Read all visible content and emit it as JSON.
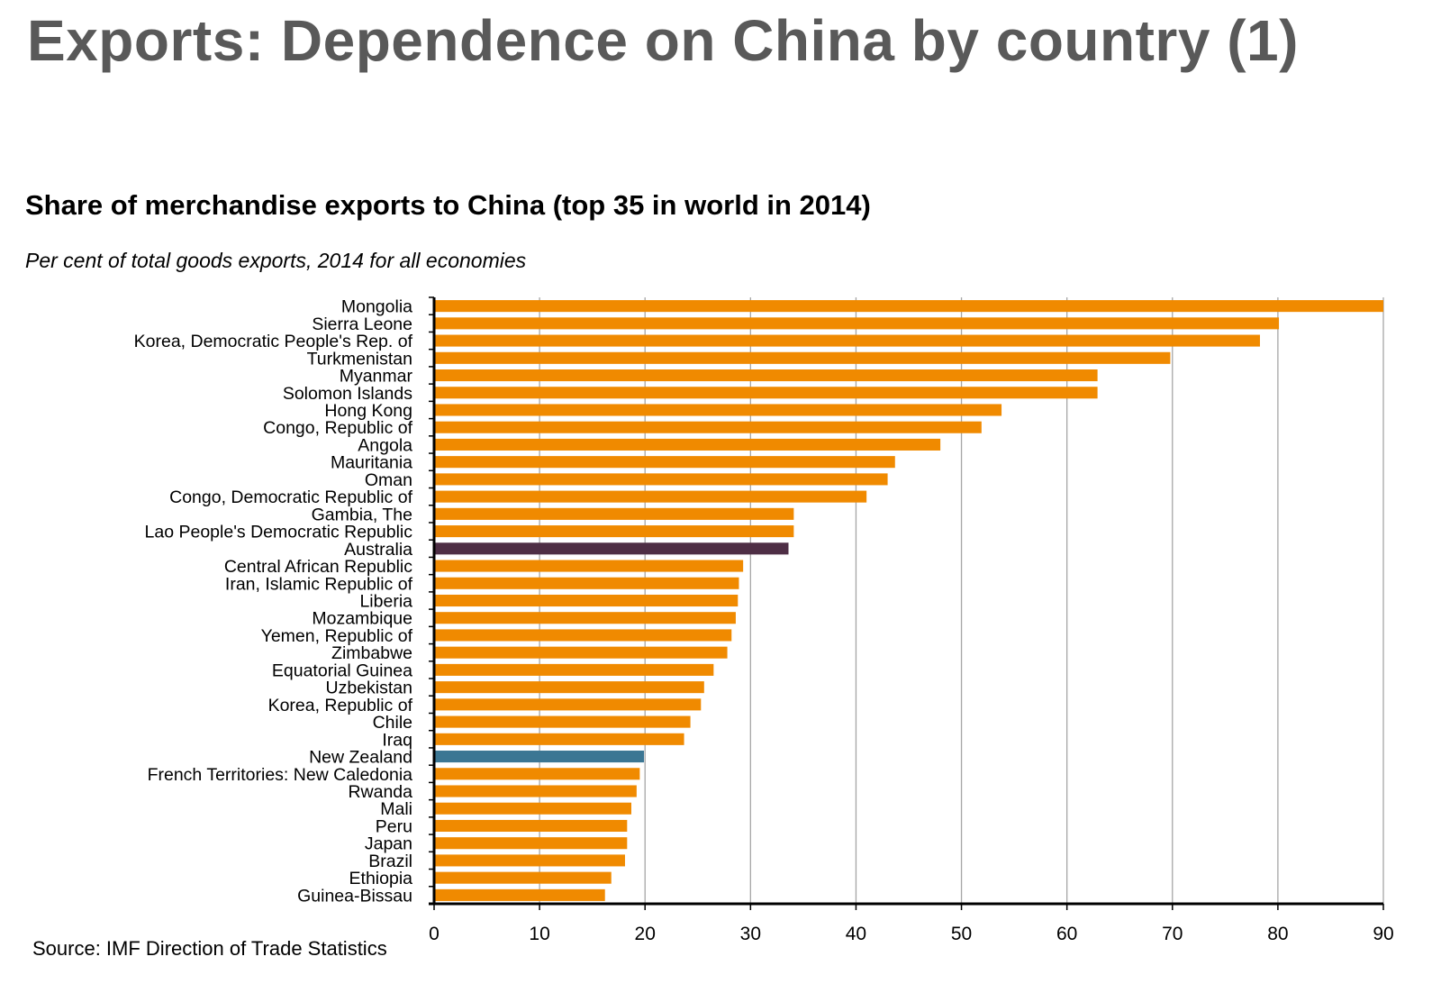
{
  "page": {
    "title": "Exports: Dependence on China by country (1)",
    "source": "Source: IMF Direction of Trade Statistics"
  },
  "colors": {
    "default_bar": "#F08A00",
    "australia": "#4E2E45",
    "new_zealand": "#3B7693",
    "gridline": "#A6A6A6",
    "axis": "#000000"
  },
  "chart_data": {
    "type": "bar",
    "orientation": "horizontal",
    "title": "Share of merchandise exports to China (top 35 in world in 2014)",
    "subtitle": "Per cent of total goods exports, 2014 for all economies",
    "xlabel": "",
    "ylabel": "",
    "xlim": [
      0,
      90
    ],
    "xticks": [
      0,
      10,
      20,
      30,
      40,
      50,
      60,
      70,
      80,
      90
    ],
    "grid": true,
    "highlight": {
      "Australia": "australia",
      "New Zealand": "new_zealand"
    },
    "categories": [
      "Mongolia",
      "Sierra Leone",
      "Korea, Democratic People's Rep. of",
      "Turkmenistan",
      "Myanmar",
      "Solomon Islands",
      "Hong Kong",
      "Congo, Republic of",
      "Angola",
      "Mauritania",
      "Oman",
      "Congo, Democratic Republic of",
      "Gambia, The",
      "Lao People's Democratic Republic",
      "Australia",
      "Central African Republic",
      "Iran, Islamic Republic of",
      "Liberia",
      "Mozambique",
      "Yemen, Republic of",
      "Zimbabwe",
      "Equatorial Guinea",
      "Uzbekistan",
      "Korea, Republic of",
      "Chile",
      "Iraq",
      "New Zealand",
      "French Territories: New Caledonia",
      "Rwanda",
      "Mali",
      "Peru",
      "Japan",
      "Brazil",
      "Ethiopia",
      "Guinea-Bissau"
    ],
    "values": [
      90.0,
      80.1,
      78.3,
      69.8,
      62.9,
      62.9,
      53.8,
      51.9,
      48.0,
      43.7,
      43.0,
      41.0,
      34.1,
      34.1,
      33.6,
      29.3,
      28.9,
      28.8,
      28.6,
      28.2,
      27.8,
      26.5,
      25.6,
      25.3,
      24.3,
      23.7,
      19.9,
      19.5,
      19.2,
      18.7,
      18.3,
      18.3,
      18.1,
      16.8,
      16.2
    ]
  }
}
